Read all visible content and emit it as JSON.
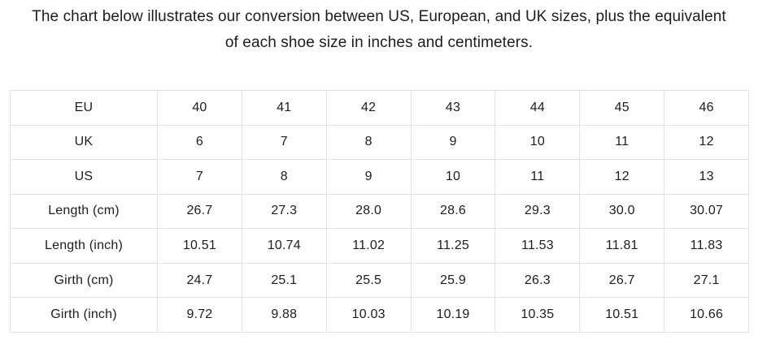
{
  "page": {
    "title_lines": [
      "The chart below illustrates our conversion between US, European, and UK sizes, plus the equivalent",
      "of each shoe size in inches and centimeters."
    ]
  },
  "chart_data": {
    "type": "table",
    "title": "The chart below illustrates our conversion between US, European, and UK sizes, plus the equivalent of each shoe size in inches and centimeters.",
    "rows": [
      {
        "label": "EU",
        "values": [
          "40",
          "41",
          "42",
          "43",
          "44",
          "45",
          "46"
        ]
      },
      {
        "label": "UK",
        "values": [
          "6",
          "7",
          "8",
          "9",
          "10",
          "11",
          "12"
        ]
      },
      {
        "label": "US",
        "values": [
          "7",
          "8",
          "9",
          "10",
          "11",
          "12",
          "13"
        ]
      },
      {
        "label": "Length (cm)",
        "values": [
          "26.7",
          "27.3",
          "28.0",
          "28.6",
          "29.3",
          "30.0",
          "30.07"
        ]
      },
      {
        "label": "Length (inch)",
        "values": [
          "10.51",
          "10.74",
          "11.02",
          "11.25",
          "11.53",
          "11.81",
          "11.83"
        ]
      },
      {
        "label": "Girth (cm)",
        "values": [
          "24.7",
          "25.1",
          "25.5",
          "25.9",
          "26.3",
          "26.7",
          "27.1"
        ]
      },
      {
        "label": "Girth (inch)",
        "values": [
          "9.72",
          "9.88",
          "10.03",
          "10.19",
          "10.35",
          "10.51",
          "10.66"
        ]
      }
    ]
  },
  "colors": {
    "border": "#e2e2e2",
    "text": "#1d1d1f",
    "background": "#ffffff"
  }
}
